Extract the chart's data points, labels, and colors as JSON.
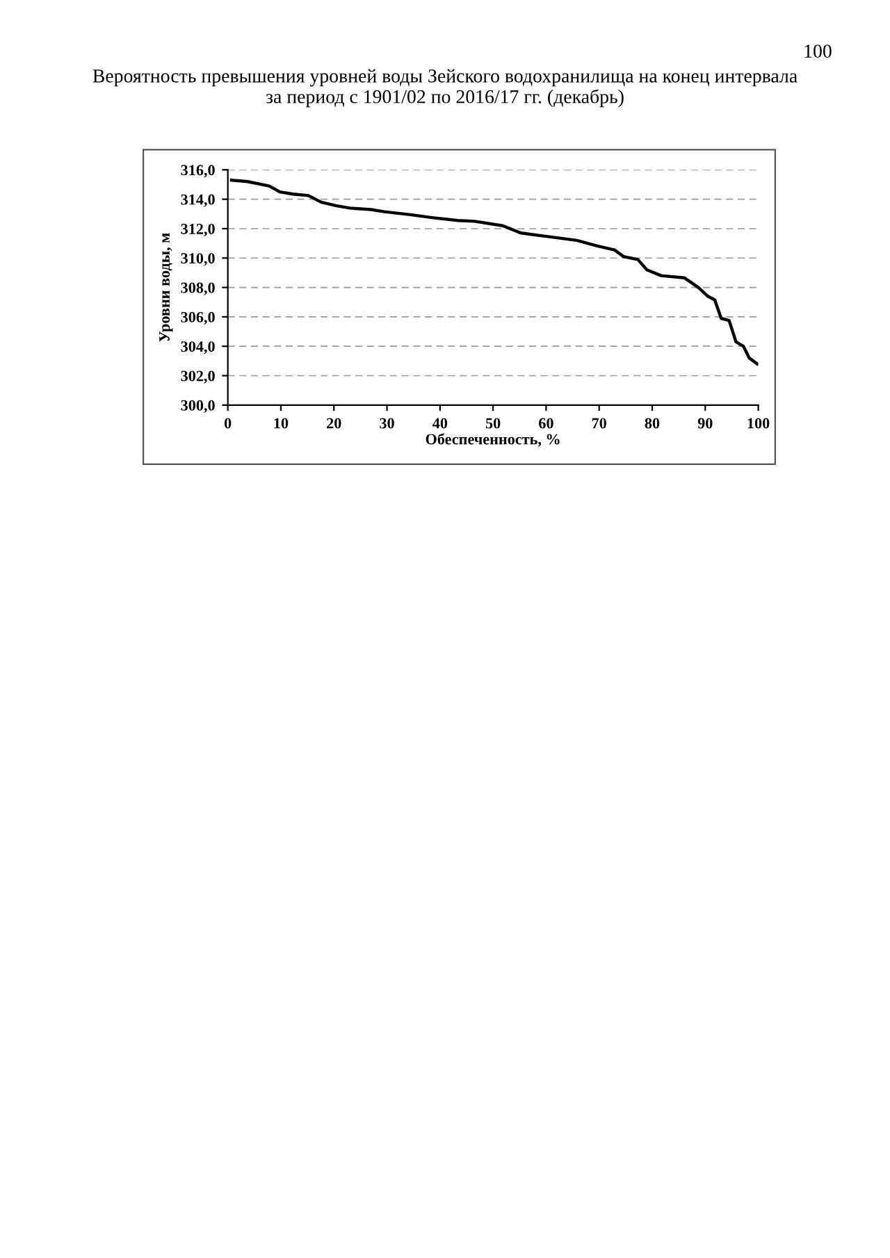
{
  "chart_data": {
    "type": "line",
    "title": "Вероятность превышения уровней воды Зейского водохранилища на конец интервала\nза период с 1901/02 по 2016/17 гг. (декабрь)",
    "xlabel": "Обеспеченность, %",
    "ylabel": "Уровни воды, м",
    "annotations": [
      "100"
    ],
    "series": [
      {
        "color": "#000000",
        "x": [
          0.7,
          3.7,
          7.8,
          9.8,
          12.3,
          15.2,
          17.6,
          20.5,
          23,
          27,
          29.5,
          34.4,
          38.5,
          43.4,
          46.5,
          51.8,
          55.3,
          60.6,
          65.8,
          69.4,
          72.9,
          74.6,
          77.3,
          79,
          81.7,
          86.1,
          88.7,
          90.5,
          91.8,
          93,
          94.5,
          95.8,
          97.2,
          98.3,
          99.8
        ],
        "values": [
          315.3,
          315.2,
          314.9,
          314.5,
          314.35,
          314.25,
          313.8,
          313.55,
          313.4,
          313.3,
          313.15,
          312.95,
          312.75,
          312.55,
          312.5,
          312.2,
          311.7,
          311.45,
          311.2,
          310.85,
          310.55,
          310.1,
          309.9,
          309.2,
          308.8,
          308.65,
          308.0,
          307.4,
          307.15,
          305.9,
          305.75,
          304.3,
          304.0,
          303.2,
          302.8
        ]
      }
    ],
    "xlim": [
      0,
      100
    ],
    "ylim": [
      300,
      316
    ],
    "xticks": [
      0,
      10,
      20,
      30,
      40,
      50,
      60,
      70,
      80,
      90,
      100
    ],
    "yticks": [
      {
        "value": 300,
        "label": "300,0"
      },
      {
        "value": 302,
        "label": "302,0"
      },
      {
        "value": 304,
        "label": "304,0"
      },
      {
        "value": 306,
        "label": "306,0"
      },
      {
        "value": 308,
        "label": "308,0"
      },
      {
        "value": 310,
        "label": "310,0"
      },
      {
        "value": 312,
        "label": "312,0"
      },
      {
        "value": 314,
        "label": "314,0"
      },
      {
        "value": 316,
        "label": "316,0"
      }
    ],
    "grid": "y",
    "marker": "none",
    "line_style": "solid",
    "legend": false
  }
}
